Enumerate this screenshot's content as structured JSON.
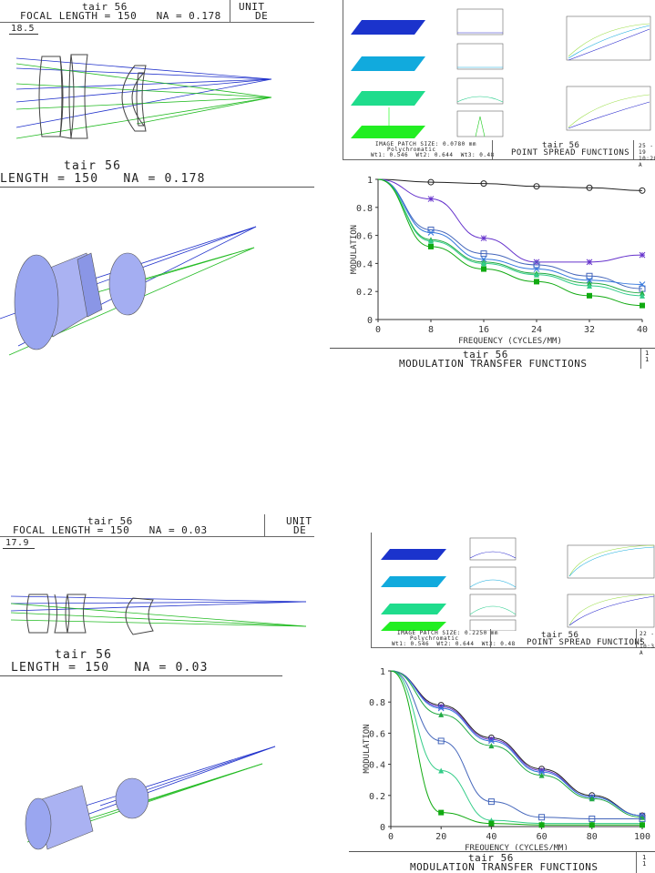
{
  "top": {
    "header": {
      "title": "tair 56",
      "sub": "FOCAL LENGTH = 150   NA = 0.178",
      "unit": "UNIT",
      "unit2": "DE"
    },
    "scale": "18.5",
    "big_title": "tair 56",
    "big_sub": "LENGTH = 150   NA = 0.178",
    "psf": {
      "footer_title": "tair 56",
      "footer_sub": "POINT SPREAD FUNCTIONS",
      "info1": "IMAGE PATCH SIZE: 0.0780 mm",
      "info2": "Polychromatic",
      "info3": "Wt1: 0.546  Wt2: 0.644  Wt3: 0.48",
      "date": "25 - 19 10:20 A"
    },
    "mtf": {
      "footer_title": "tair 56",
      "footer_sub": "MODULATION TRANSFER FUNCTIONS",
      "frag": "1\n1"
    }
  },
  "bottom": {
    "header": {
      "title": "tair 56",
      "sub": "FOCAL LENGTH = 150   NA = 0.03",
      "unit": "UNIT",
      "unit2": "DE"
    },
    "scale": "17.9",
    "big_title": "tair 56",
    "big_sub": "LENGTH = 150   NA = 0.03",
    "psf": {
      "footer_title": "tair 56",
      "footer_sub": "POINT SPREAD FUNCTIONS",
      "info1": "IMAGE PATCH SIZE: 0.2250 mm",
      "info2": "Polychromatic",
      "info3": "Wt1: 0.546  Wt2: 0.644  Wt3: 0.48",
      "date": "22 - 1 10:31 A"
    },
    "mtf": {
      "footer_title": "tair 56",
      "footer_sub": "MODULATION TRANSFER FUNCTIONS",
      "frag": "1\n1"
    }
  },
  "colors": {
    "blue": "#2233cc",
    "green": "#22bb22",
    "cyan": "#11aadd",
    "lens": "#9aa6f0"
  },
  "chart_data": [
    {
      "type": "line",
      "title": "",
      "xlabel": "FREQUENCY (CYCLES/MM)",
      "ylabel": "MODULATION",
      "xlim": [
        0,
        40
      ],
      "ylim": [
        0,
        1
      ],
      "xticks": [
        0,
        8,
        16,
        24,
        32,
        40
      ],
      "yticks": [
        0,
        0.2,
        0.4,
        0.6,
        0.8,
        1
      ],
      "x": [
        0,
        8,
        16,
        24,
        32,
        40
      ],
      "series": [
        {
          "values": [
            1,
            0.98,
            0.97,
            0.95,
            0.94,
            0.92
          ],
          "color": "#222222",
          "marker": "circle"
        },
        {
          "values": [
            1,
            0.86,
            0.58,
            0.41,
            0.41,
            0.46
          ],
          "color": "#6633cc",
          "marker": "star"
        },
        {
          "values": [
            1,
            0.64,
            0.47,
            0.39,
            0.31,
            0.22
          ],
          "color": "#4466bb",
          "marker": "square"
        },
        {
          "values": [
            1,
            0.62,
            0.43,
            0.36,
            0.28,
            0.25
          ],
          "color": "#3377dd",
          "marker": "x"
        },
        {
          "values": [
            1,
            0.57,
            0.41,
            0.33,
            0.26,
            0.19
          ],
          "color": "#22aa44",
          "marker": "triangle"
        },
        {
          "values": [
            1,
            0.56,
            0.4,
            0.32,
            0.24,
            0.17
          ],
          "color": "#33cc88",
          "marker": "triangle"
        },
        {
          "values": [
            1,
            0.52,
            0.36,
            0.27,
            0.17,
            0.1
          ],
          "color": "#11aa11",
          "marker": "filledsquare"
        }
      ]
    },
    {
      "type": "line",
      "title": "",
      "xlabel": "FREQUENCY (CYCLES/MM)",
      "ylabel": "MODULATION",
      "xlim": [
        0,
        100
      ],
      "ylim": [
        0,
        1
      ],
      "xticks": [
        0,
        20,
        40,
        60,
        80,
        100
      ],
      "yticks": [
        0,
        0.2,
        0.4,
        0.6,
        0.8,
        1
      ],
      "x": [
        0,
        20,
        40,
        60,
        80,
        100
      ],
      "series": [
        {
          "values": [
            1,
            0.78,
            0.57,
            0.37,
            0.2,
            0.07
          ],
          "color": "#222222",
          "marker": "circle"
        },
        {
          "values": [
            1,
            0.77,
            0.56,
            0.36,
            0.19,
            0.07
          ],
          "color": "#6633cc",
          "marker": "star"
        },
        {
          "values": [
            1,
            0.76,
            0.55,
            0.35,
            0.19,
            0.07
          ],
          "color": "#3377dd",
          "marker": "x"
        },
        {
          "values": [
            1,
            0.72,
            0.52,
            0.33,
            0.18,
            0.06
          ],
          "color": "#22aa44",
          "marker": "triangle"
        },
        {
          "values": [
            1,
            0.55,
            0.16,
            0.06,
            0.05,
            0.05
          ],
          "color": "#4466bb",
          "marker": "square"
        },
        {
          "values": [
            1,
            0.36,
            0.04,
            0.02,
            0.02,
            0.02
          ],
          "color": "#33cc88",
          "marker": "triangle"
        },
        {
          "values": [
            1,
            0.09,
            0.02,
            0.01,
            0.01,
            0.01
          ],
          "color": "#11aa11",
          "marker": "filledsquare"
        }
      ]
    }
  ]
}
